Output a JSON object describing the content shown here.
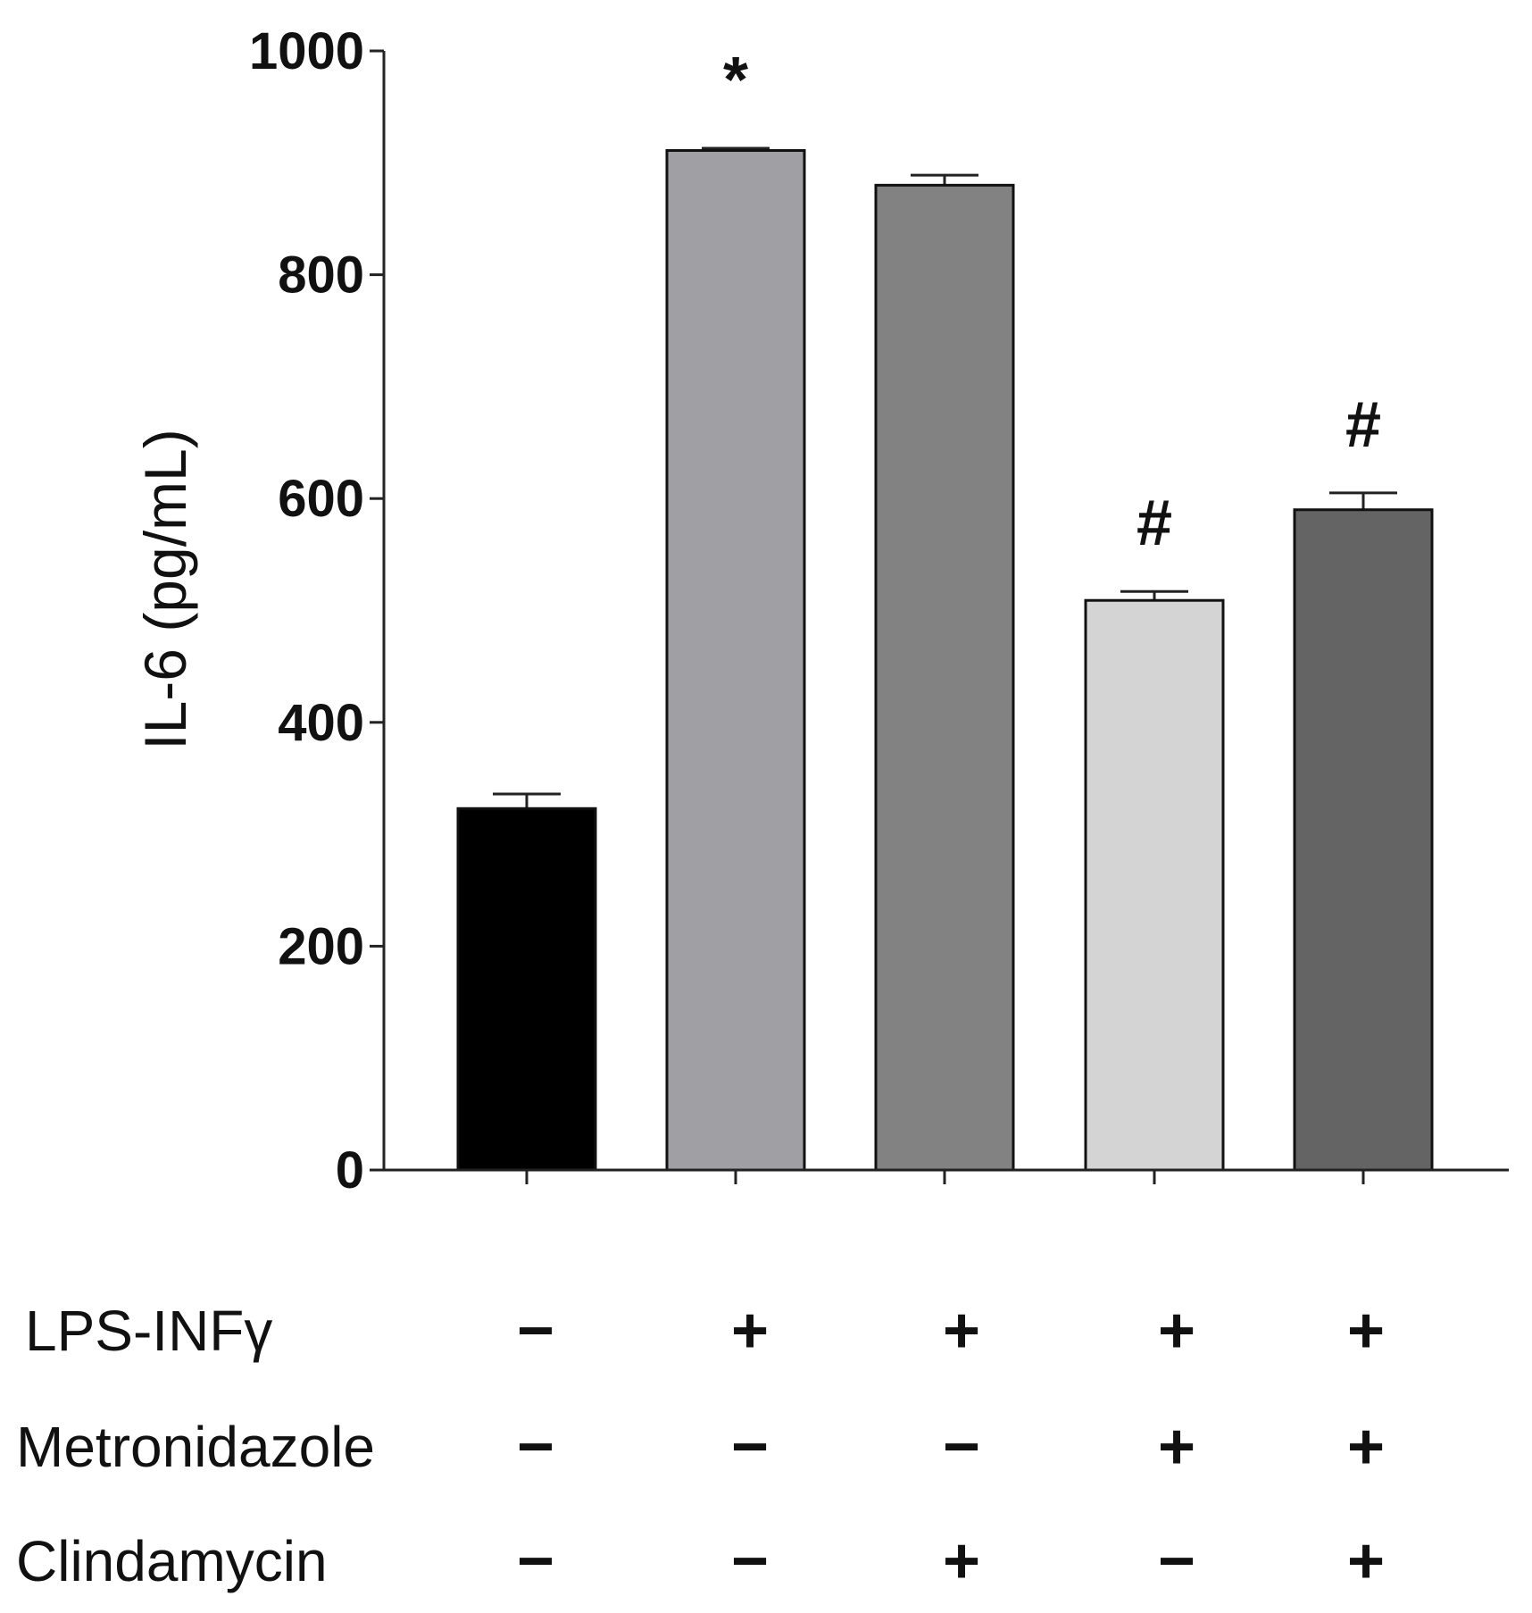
{
  "chart_data": {
    "type": "bar",
    "ylabel": "IL-6 (pg/mL)",
    "ylim": [
      0,
      1000
    ],
    "yticks": [
      0,
      200,
      400,
      600,
      800,
      1000
    ],
    "grid": false,
    "bars": [
      {
        "value": 323,
        "error": 13,
        "color": "#000000",
        "annotation": ""
      },
      {
        "value": 911,
        "error": 2,
        "color": "#a0a0a4",
        "annotation": "*"
      },
      {
        "value": 880,
        "error": 9,
        "color": "#828282",
        "annotation": ""
      },
      {
        "value": 509,
        "error": 8,
        "color": "#d4d4d4",
        "annotation": "#"
      },
      {
        "value": 590,
        "error": 15,
        "color": "#646464",
        "annotation": "#"
      }
    ],
    "treatment_rows": [
      {
        "label": "LPS-INFγ",
        "signs": [
          "−",
          "+",
          "+",
          "+",
          "+"
        ]
      },
      {
        "label": "Metronidazole",
        "signs": [
          "−",
          "−",
          "−",
          "+",
          "+"
        ]
      },
      {
        "label": "Clindamycin",
        "signs": [
          "−",
          "−",
          "+",
          "−",
          "+"
        ]
      }
    ]
  }
}
